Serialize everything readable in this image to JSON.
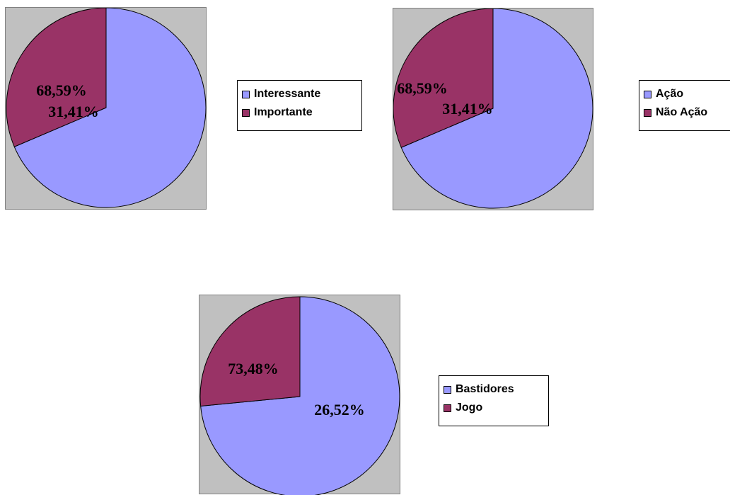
{
  "chart_data": [
    {
      "type": "pie",
      "slices": [
        {
          "label": "Interessante",
          "value": 68.59,
          "display": "68,59%",
          "color": "#9999ff"
        },
        {
          "label": "Importante",
          "value": 31.41,
          "display": "31,41%",
          "color": "#993366"
        }
      ],
      "legend_position": "right",
      "start_angle_deg": 0,
      "direction": "clockwise"
    },
    {
      "type": "pie",
      "slices": [
        {
          "label": "Ação",
          "value": 68.59,
          "display": "68,59%",
          "color": "#9999ff"
        },
        {
          "label": "Não Ação",
          "value": 31.41,
          "display": "31,41%",
          "color": "#993366"
        }
      ],
      "legend_position": "right",
      "start_angle_deg": 0,
      "direction": "clockwise"
    },
    {
      "type": "pie",
      "slices": [
        {
          "label": "Bastidores",
          "value": 73.48,
          "display": "73,48%",
          "color": "#9999ff"
        },
        {
          "label": "Jogo",
          "value": 26.52,
          "display": "26,52%",
          "color": "#993366"
        }
      ],
      "legend_position": "right",
      "start_angle_deg": 0,
      "direction": "clockwise"
    }
  ],
  "style": {
    "plot_background": "#c0c0c0",
    "slice_stroke": "#000000"
  }
}
